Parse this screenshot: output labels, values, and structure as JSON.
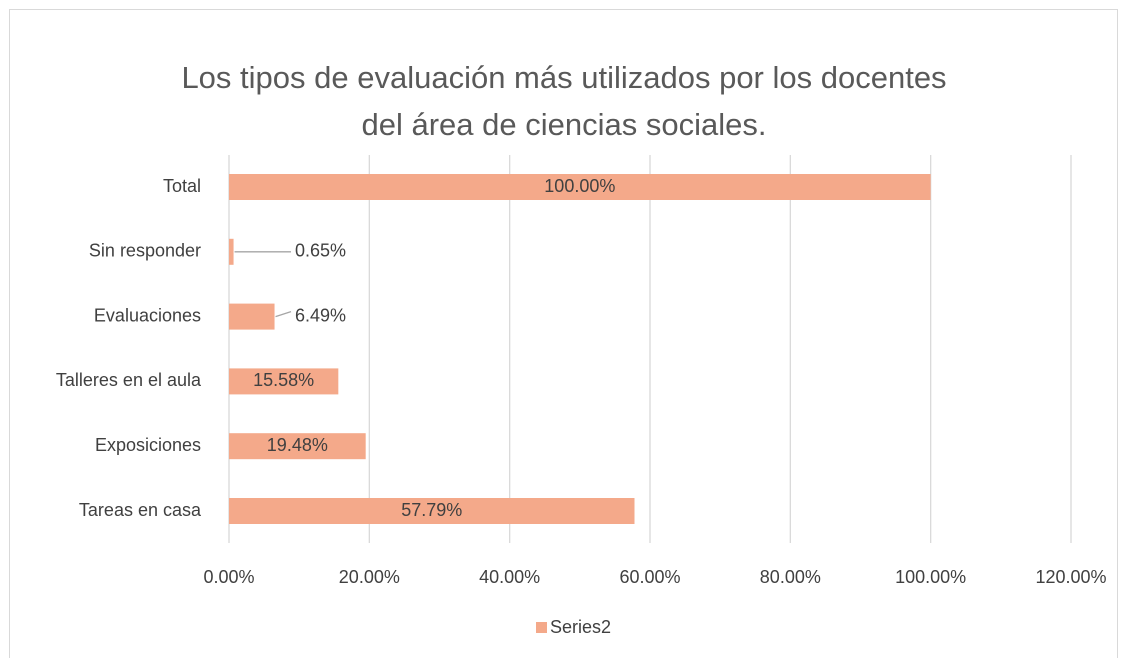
{
  "chart_data": {
    "type": "bar",
    "orientation": "horizontal",
    "title": "Los tipos de evaluación más utilizados por los docentes del área de ciencias sociales.",
    "categories": [
      "Total",
      "Sin responder",
      "Evaluaciones",
      "Talleres en el aula",
      "Exposiciones",
      "Tareas en casa"
    ],
    "series": [
      {
        "name": "Series2",
        "color": "#f4a98a",
        "values": [
          100,
          0.65,
          6.49,
          15.58,
          19.48,
          57.79
        ],
        "value_labels": [
          "100.00%",
          "0.65%",
          "6.49%",
          "15.58%",
          "19.48%",
          "57.79%"
        ]
      }
    ],
    "xlim": [
      0,
      120
    ],
    "xticks": [
      {
        "value": 0,
        "label": "0.00%"
      },
      {
        "value": 20,
        "label": "20.00%"
      },
      {
        "value": 40,
        "label": "40.00%"
      },
      {
        "value": 60,
        "label": "60.00%"
      },
      {
        "value": 80,
        "label": "80.00%"
      },
      {
        "value": 100,
        "label": "100.00%"
      },
      {
        "value": 120,
        "label": "120.00%"
      }
    ],
    "grid": true,
    "legend": "bottom"
  }
}
